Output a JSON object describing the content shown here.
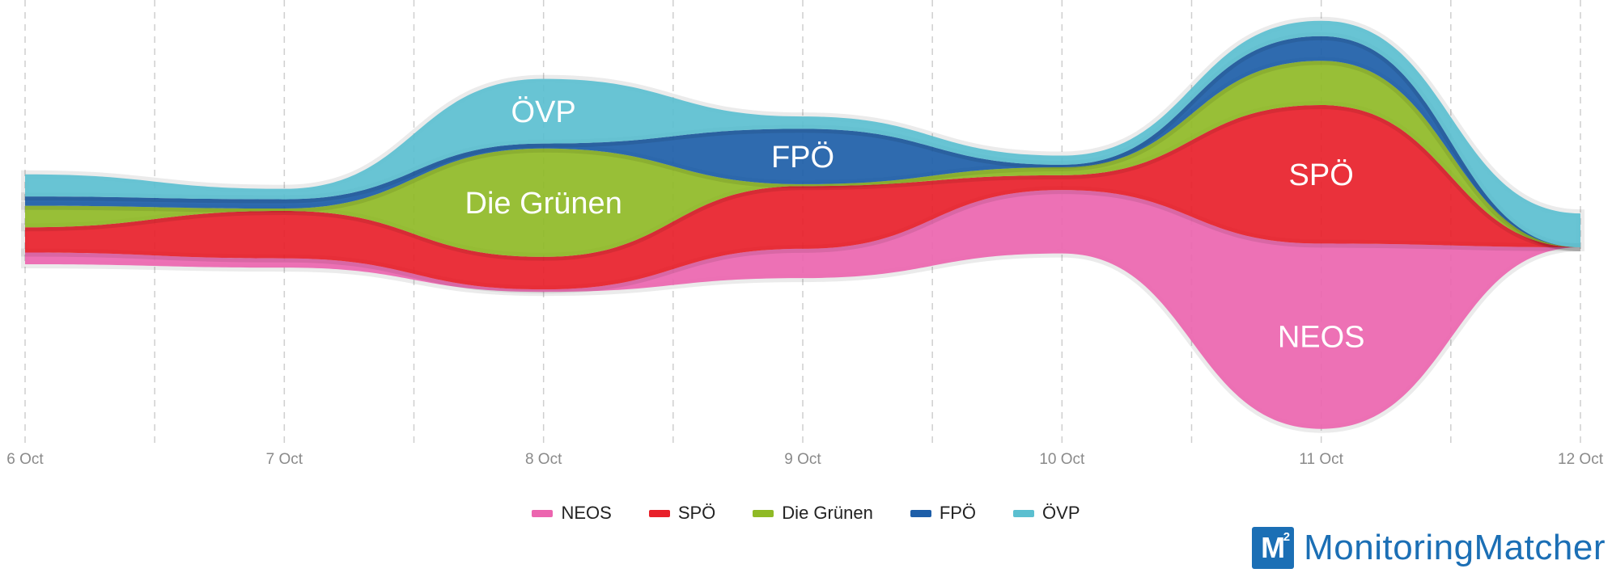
{
  "chart_data": {
    "type": "area",
    "subtype": "streamgraph",
    "x": [
      "6 Oct",
      "7 Oct",
      "8 Oct",
      "9 Oct",
      "10 Oct",
      "11 Oct",
      "12 Oct"
    ],
    "grid": true,
    "series": [
      {
        "name": "NEOS",
        "color": "#ec65af",
        "values": [
          0.38,
          0.3,
          0.08,
          0.95,
          2.06,
          6.02,
          0.0
        ]
      },
      {
        "name": "SPÖ",
        "color": "#e8202a",
        "values": [
          0.82,
          1.54,
          1.06,
          2.04,
          0.48,
          4.5,
          0.0
        ]
      },
      {
        "name": "Die Grünen",
        "color": "#8fba26",
        "values": [
          0.7,
          0.08,
          3.52,
          0.06,
          0.26,
          1.44,
          0.0
        ]
      },
      {
        "name": "FPÖ",
        "color": "#1d5ea8",
        "values": [
          0.3,
          0.3,
          0.16,
          1.8,
          0.08,
          0.8,
          0.0
        ]
      },
      {
        "name": "ÖVP",
        "color": "#5bbfd0",
        "values": [
          0.72,
          0.34,
          2.1,
          0.4,
          0.3,
          0.5,
          1.1
        ]
      }
    ],
    "stream_labels": [
      "NEOS",
      "SPÖ",
      "Die Grünen",
      "FPÖ",
      "ÖVP"
    ]
  },
  "brand": {
    "mark": "M",
    "mark_sup": "2",
    "name": "MonitoringMatcher"
  }
}
